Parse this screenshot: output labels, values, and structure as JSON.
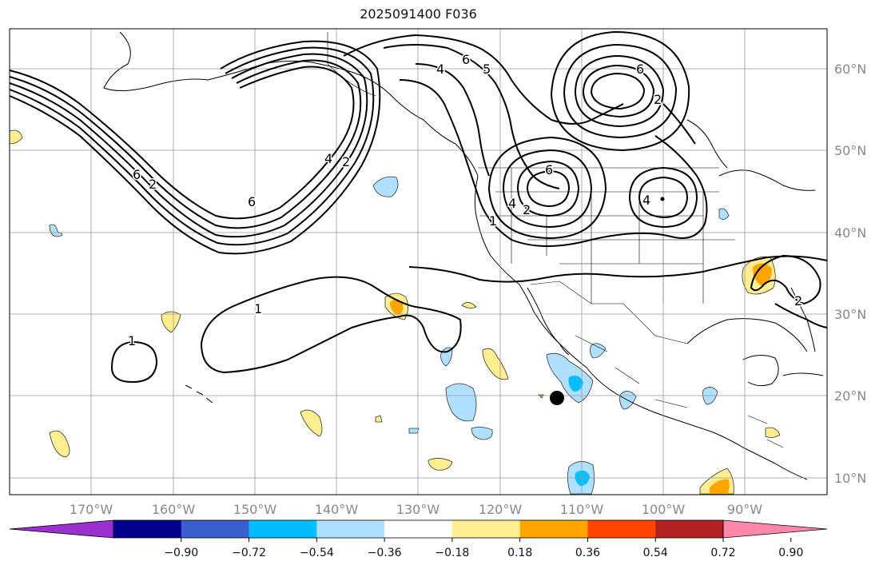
{
  "title": "2025091400 F036",
  "axes": {
    "lat_labels": [
      "60°N",
      "50°N",
      "40°N",
      "30°N",
      "20°N",
      "10°N"
    ],
    "lon_labels": [
      "170°W",
      "160°W",
      "150°W",
      "140°W",
      "130°W",
      "120°W",
      "110°W",
      "100°W",
      "90°W"
    ]
  },
  "map": {
    "lon_range": [
      -180,
      -80
    ],
    "lat_range": [
      8,
      65
    ],
    "gridlines": true
  },
  "contour_labels": [
    "1",
    "1",
    "2",
    "4",
    "6",
    "6",
    "4",
    "2",
    "6",
    "5",
    "6",
    "4",
    "2",
    "6",
    "4",
    "2",
    "1",
    "2"
  ],
  "colorbar": {
    "ticks": [
      "−0.90",
      "−0.72",
      "−0.54",
      "−0.36",
      "−0.18",
      "0.18",
      "0.36",
      "0.54",
      "0.72",
      "0.90"
    ],
    "colors": [
      "#9b30d0",
      "#00008b",
      "#3a5fcd",
      "#00bfff",
      "#b0e0ff",
      "#ffffff",
      "#ffee90",
      "#ffa500",
      "#ff4500",
      "#b22222",
      "#ff88aa"
    ]
  },
  "marker": {
    "label": "",
    "lon": -113.5,
    "lat": 20
  }
}
